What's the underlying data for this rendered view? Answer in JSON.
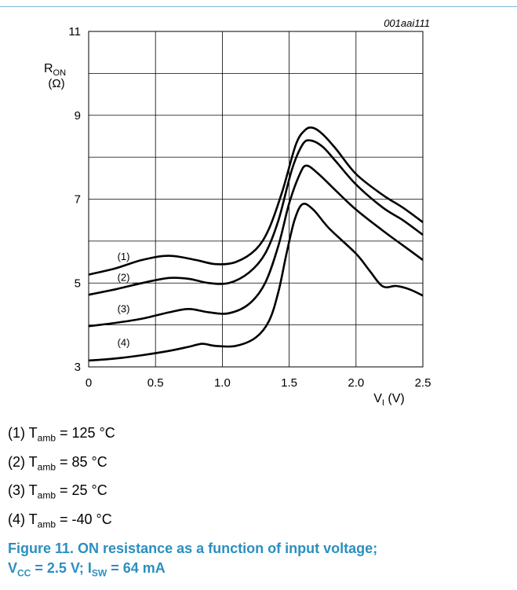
{
  "chart_data": {
    "type": "line",
    "doc_id": "001aai111",
    "ylabel": "RON",
    "ylabel_unit": "(Ω)",
    "xlabel": "VI (V)",
    "xlim": [
      0,
      2.5
    ],
    "ylim": [
      3,
      11
    ],
    "x_ticks": [
      "0",
      "0.5",
      "1.0",
      "1.5",
      "2.0",
      "2.5"
    ],
    "y_ticks": [
      "3",
      "5",
      "7",
      "9",
      "11"
    ],
    "grid": true,
    "series": [
      {
        "name": "(1)",
        "points": [
          [
            0,
            5.2
          ],
          [
            0.2,
            5.35
          ],
          [
            0.4,
            5.55
          ],
          [
            0.6,
            5.65
          ],
          [
            0.8,
            5.55
          ],
          [
            0.95,
            5.45
          ],
          [
            1.1,
            5.5
          ],
          [
            1.25,
            5.8
          ],
          [
            1.35,
            6.3
          ],
          [
            1.45,
            7.2
          ],
          [
            1.55,
            8.3
          ],
          [
            1.62,
            8.65
          ],
          [
            1.68,
            8.7
          ],
          [
            1.75,
            8.55
          ],
          [
            1.85,
            8.2
          ],
          [
            2.0,
            7.6
          ],
          [
            2.2,
            7.1
          ],
          [
            2.35,
            6.8
          ],
          [
            2.5,
            6.45
          ]
        ]
      },
      {
        "name": "(2)",
        "points": [
          [
            0,
            4.72
          ],
          [
            0.2,
            4.85
          ],
          [
            0.4,
            5.0
          ],
          [
            0.6,
            5.12
          ],
          [
            0.75,
            5.1
          ],
          [
            0.9,
            5.0
          ],
          [
            1.05,
            5.0
          ],
          [
            1.2,
            5.25
          ],
          [
            1.32,
            5.7
          ],
          [
            1.42,
            6.5
          ],
          [
            1.52,
            7.7
          ],
          [
            1.6,
            8.3
          ],
          [
            1.66,
            8.4
          ],
          [
            1.75,
            8.25
          ],
          [
            1.85,
            7.9
          ],
          [
            2.0,
            7.35
          ],
          [
            2.2,
            6.8
          ],
          [
            2.35,
            6.5
          ],
          [
            2.5,
            6.15
          ]
        ]
      },
      {
        "name": "(3)",
        "points": [
          [
            0,
            3.97
          ],
          [
            0.2,
            4.05
          ],
          [
            0.4,
            4.15
          ],
          [
            0.6,
            4.3
          ],
          [
            0.75,
            4.38
          ],
          [
            0.9,
            4.3
          ],
          [
            1.05,
            4.28
          ],
          [
            1.2,
            4.5
          ],
          [
            1.32,
            5.0
          ],
          [
            1.42,
            5.9
          ],
          [
            1.5,
            6.9
          ],
          [
            1.58,
            7.6
          ],
          [
            1.63,
            7.8
          ],
          [
            1.72,
            7.6
          ],
          [
            1.85,
            7.2
          ],
          [
            2.0,
            6.75
          ],
          [
            2.2,
            6.25
          ],
          [
            2.35,
            5.9
          ],
          [
            2.5,
            5.55
          ]
        ]
      },
      {
        "name": "(4)",
        "points": [
          [
            0,
            3.15
          ],
          [
            0.2,
            3.2
          ],
          [
            0.4,
            3.28
          ],
          [
            0.6,
            3.38
          ],
          [
            0.75,
            3.48
          ],
          [
            0.85,
            3.55
          ],
          [
            0.95,
            3.5
          ],
          [
            1.1,
            3.5
          ],
          [
            1.25,
            3.7
          ],
          [
            1.35,
            4.1
          ],
          [
            1.42,
            4.8
          ],
          [
            1.48,
            5.7
          ],
          [
            1.54,
            6.5
          ],
          [
            1.6,
            6.88
          ],
          [
            1.68,
            6.75
          ],
          [
            1.8,
            6.3
          ],
          [
            2.0,
            5.7
          ],
          [
            2.1,
            5.3
          ],
          [
            2.2,
            4.92
          ],
          [
            2.3,
            4.93
          ],
          [
            2.4,
            4.85
          ],
          [
            2.5,
            4.7
          ]
        ]
      }
    ]
  },
  "legend": [
    {
      "prefix": "(1) T",
      "sub": "amb",
      "suffix": " = 125 °C"
    },
    {
      "prefix": "(2) T",
      "sub": "amb",
      "suffix": " = 85 °C"
    },
    {
      "prefix": "(3) T",
      "sub": "amb",
      "suffix": " = 25 °C"
    },
    {
      "prefix": "(4) T",
      "sub": "amb",
      "suffix": " = -40 °C"
    }
  ],
  "caption": {
    "line1": "Figure 11.   ON resistance as a function of input voltage;",
    "vcc_v": "V",
    "vcc_sub": "CC",
    "vcc_rest": " = 2.5 V; I",
    "isw_sub": "SW",
    "isw_rest": " = 64 mA"
  },
  "colors": {
    "accent": "#2b8fbf",
    "rule": "#7fb3d5",
    "line": "#000000"
  }
}
